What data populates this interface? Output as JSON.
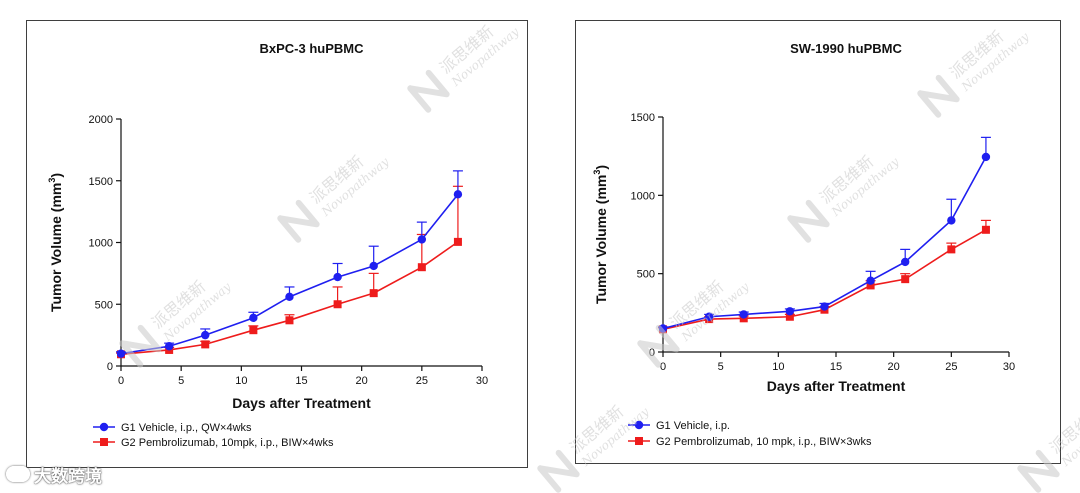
{
  "colors": {
    "g1": "#1f1ff0",
    "g2": "#ee1c1c",
    "axis": "#111111"
  },
  "footer": {
    "credit": "大数跨境"
  },
  "watermark": {
    "cn": "派思维新",
    "en": "Novopathway"
  },
  "chart_data": [
    {
      "type": "line",
      "title": "BxPC-3 huPBMC",
      "xlabel": "Days after Treatment",
      "ylabel": "Tumor Volume (mm",
      "ylabel_sup": "3",
      "ylabel_end": ")",
      "xlim": [
        0,
        30
      ],
      "ylim": [
        0,
        2000
      ],
      "x_ticks": [
        0,
        5,
        10,
        15,
        20,
        25,
        30
      ],
      "y_ticks": [
        0,
        500,
        1000,
        1500,
        2000
      ],
      "x_tick_labels": [
        "0",
        "5",
        "10",
        "15",
        "20",
        "25",
        "30"
      ],
      "y_tick_labels": [
        "0",
        "500",
        "1000",
        "1500",
        "2000"
      ],
      "series": [
        {
          "name": "G1 Vehicle, i.p., QW×4wks",
          "color": "#1f1ff0",
          "marker": "circle",
          "x": [
            0,
            4,
            7,
            11,
            14,
            18,
            21,
            25,
            28
          ],
          "y": [
            100,
            160,
            250,
            390,
            560,
            720,
            810,
            1025,
            1390
          ],
          "err": [
            15,
            25,
            50,
            45,
            80,
            110,
            160,
            140,
            190
          ]
        },
        {
          "name": "G2 Pembrolizumab, 10mpk, i.p., BIW×4wks",
          "color": "#ee1c1c",
          "marker": "square",
          "x": [
            0,
            4,
            7,
            11,
            14,
            18,
            21,
            25,
            28
          ],
          "y": [
            95,
            130,
            175,
            290,
            370,
            500,
            590,
            800,
            1005
          ],
          "err": [
            10,
            20,
            25,
            35,
            45,
            140,
            160,
            265,
            450
          ]
        }
      ]
    },
    {
      "type": "line",
      "title": "SW-1990 huPBMC",
      "xlabel": "Days after Treatment",
      "ylabel": "Tumor Volume (mm",
      "ylabel_sup": "3",
      "ylabel_end": ")",
      "xlim": [
        0,
        30
      ],
      "ylim": [
        0,
        1500
      ],
      "x_ticks": [
        0,
        5,
        10,
        15,
        20,
        25,
        30
      ],
      "y_ticks": [
        0,
        500,
        1000,
        1500
      ],
      "x_tick_labels": [
        "0",
        "5",
        "10",
        "15",
        "20",
        "25",
        "30"
      ],
      "y_tick_labels": [
        "0",
        "500",
        "1000",
        "1500"
      ],
      "series": [
        {
          "name": "G1 Vehicle, i.p.",
          "color": "#1f1ff0",
          "marker": "circle",
          "x": [
            0,
            4,
            7,
            11,
            14,
            18,
            21,
            25,
            28
          ],
          "y": [
            150,
            225,
            240,
            260,
            290,
            455,
            575,
            840,
            1245
          ],
          "err": [
            10,
            15,
            15,
            15,
            20,
            60,
            80,
            135,
            125
          ]
        },
        {
          "name": "G2 Pembrolizumab, 10 mpk, i.p., BIW×3wks",
          "color": "#ee1c1c",
          "marker": "square",
          "x": [
            0,
            4,
            7,
            11,
            14,
            18,
            21,
            25,
            28
          ],
          "y": [
            145,
            210,
            215,
            225,
            270,
            425,
            465,
            655,
            780
          ],
          "err": [
            10,
            15,
            15,
            15,
            20,
            30,
            35,
            40,
            60
          ]
        }
      ]
    }
  ]
}
